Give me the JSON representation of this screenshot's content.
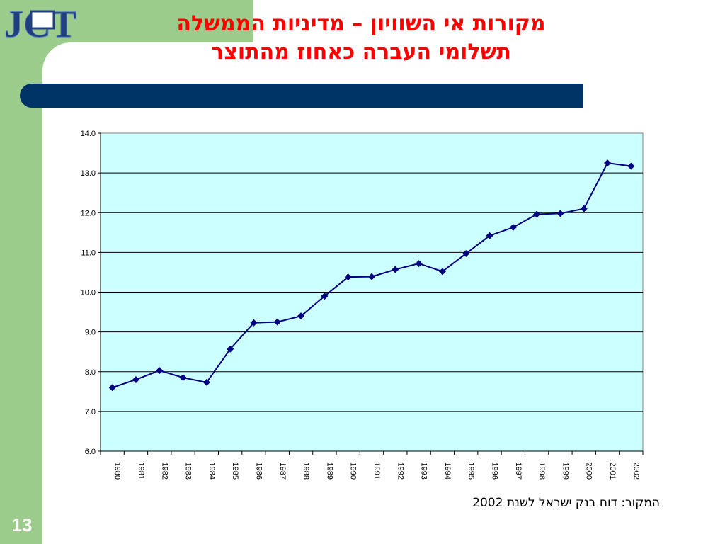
{
  "slide": {
    "title_line1": "מקורות אי השוויון – מדיניות הממשלה",
    "title_line2": "תשלומי העברה כאחוז מהתוצר",
    "page_number": "13",
    "source": "המקור: דוח בנק ישראל לשנת 2002",
    "logo_text": "JCT"
  },
  "colors": {
    "side_green": "#9ccc8c",
    "title_red": "#ff0000",
    "bar_navy": "#003366",
    "plot_bg": "#ccffff",
    "series": "#000080"
  },
  "chart_data": {
    "type": "line",
    "title": "",
    "xlabel": "",
    "ylabel": "",
    "categories": [
      "1980",
      "1981",
      "1982",
      "1983",
      "1984",
      "1985",
      "1986",
      "1987",
      "1988",
      "1989",
      "1990",
      "1991",
      "1992",
      "1993",
      "1994",
      "1995",
      "1996",
      "1997",
      "1998",
      "1999",
      "2000",
      "2001",
      "2002"
    ],
    "series": [
      {
        "values": [
          7.6,
          7.8,
          8.03,
          7.85,
          7.73,
          8.57,
          9.23,
          9.25,
          9.4,
          9.9,
          10.38,
          10.39,
          10.57,
          10.72,
          10.52,
          10.97,
          11.42,
          11.63,
          11.96,
          11.98,
          12.1,
          13.25,
          13.17
        ]
      }
    ],
    "ylim": [
      6.0,
      14.0
    ],
    "yticks": [
      "6.0",
      "7.0",
      "8.0",
      "9.0",
      "10.0",
      "11.0",
      "12.0",
      "13.0",
      "14.0"
    ],
    "grid": true,
    "legend": "none"
  }
}
